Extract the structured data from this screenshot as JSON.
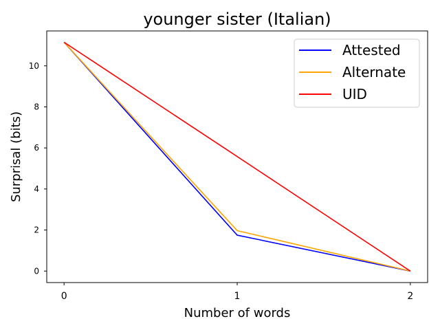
{
  "chart_data": {
    "type": "line",
    "title": "younger sister (Italian)",
    "xlabel": "Number of words",
    "ylabel": "Surprisal (bits)",
    "x": [
      0,
      1,
      2
    ],
    "xticks": [
      "0",
      "1",
      "2"
    ],
    "yticks": [
      "0",
      "2",
      "4",
      "6",
      "8",
      "10"
    ],
    "xlim": [
      -0.1,
      2.1
    ],
    "ylim": [
      -0.56,
      11.7
    ],
    "grid": false,
    "legend_position": "top-right",
    "series": [
      {
        "name": "Attested",
        "color": "#0000ff",
        "values": [
          11.15,
          1.75,
          0.0
        ]
      },
      {
        "name": "Alternate",
        "color": "#ffa500",
        "values": [
          11.15,
          1.97,
          0.0
        ]
      },
      {
        "name": "UID",
        "color": "#ff0000",
        "values": [
          11.15,
          5.58,
          0.0
        ]
      }
    ]
  }
}
